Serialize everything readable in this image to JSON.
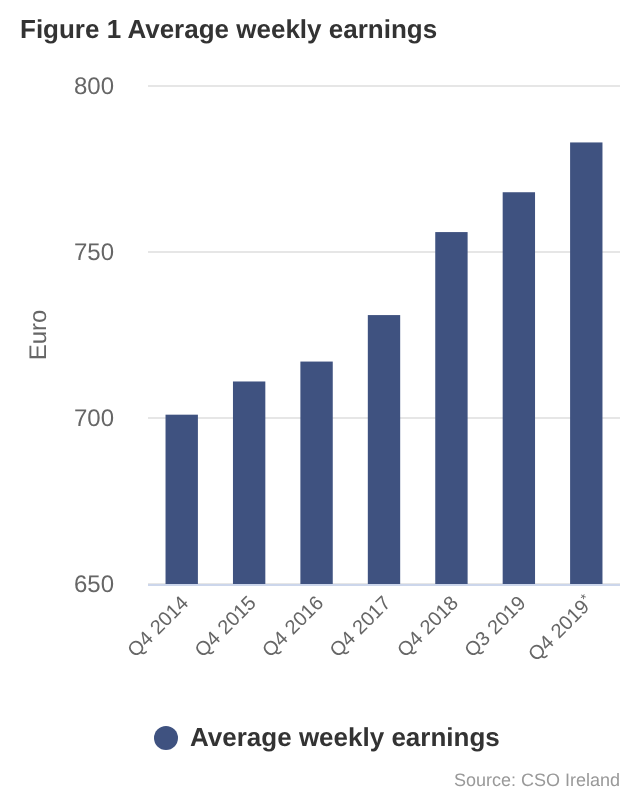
{
  "chart_data": {
    "type": "bar",
    "title": "Figure 1 Average weekly earnings",
    "ylabel": "Euro",
    "categories": [
      "Q4 2014",
      "Q4 2015",
      "Q4 2016",
      "Q4 2017",
      "Q4 2018",
      "Q3 2019",
      "Q4 2019$^{*}$"
    ],
    "series": [
      {
        "name": "Average weekly earnings",
        "color": "#3f5280",
        "values": [
          701,
          711,
          717,
          731,
          756,
          768,
          783
        ]
      }
    ],
    "ylim": [
      650,
      800
    ],
    "yticks": [
      650,
      700,
      750,
      800
    ],
    "grid": "y",
    "legend": "bottom",
    "annotations": [
      "Source: CSO Ireland"
    ]
  }
}
